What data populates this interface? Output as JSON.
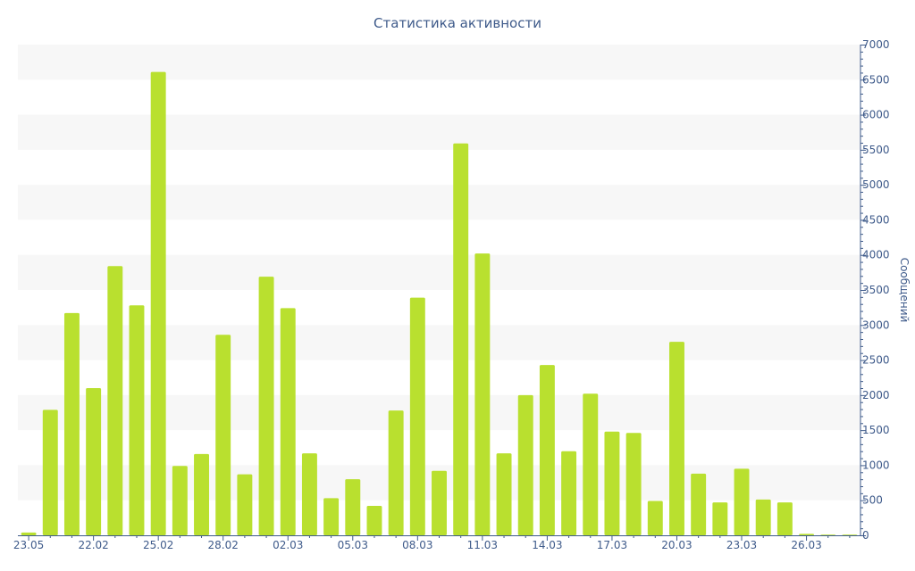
{
  "chart_data": {
    "type": "bar",
    "title": "Статистика активности",
    "xlabel": "",
    "ylabel": "Сообщений",
    "ylim": [
      0,
      7000
    ],
    "y_axis_side": "right",
    "yticks": [
      0,
      500,
      1000,
      1500,
      2000,
      2500,
      3000,
      3500,
      4000,
      4500,
      5000,
      5500,
      6000,
      6500,
      7000
    ],
    "x_tick_labels": [
      {
        "index": 0,
        "label": "23.05"
      },
      {
        "index": 3,
        "label": "22.02"
      },
      {
        "index": 6,
        "label": "25.02"
      },
      {
        "index": 9,
        "label": "28.02"
      },
      {
        "index": 12,
        "label": "02.03"
      },
      {
        "index": 15,
        "label": "05.03"
      },
      {
        "index": 18,
        "label": "08.03"
      },
      {
        "index": 21,
        "label": "11.03"
      },
      {
        "index": 24,
        "label": "14.03"
      },
      {
        "index": 27,
        "label": "17.03"
      },
      {
        "index": 30,
        "label": "20.03"
      },
      {
        "index": 33,
        "label": "23.03"
      },
      {
        "index": 36,
        "label": "26.03"
      }
    ],
    "values": [
      40,
      1790,
      3170,
      2100,
      3840,
      3280,
      6610,
      990,
      1160,
      2860,
      870,
      3690,
      3240,
      1170,
      530,
      800,
      420,
      1780,
      3390,
      920,
      5590,
      4020,
      1170,
      2000,
      2430,
      1200,
      2020,
      1480,
      1460,
      490,
      2760,
      880,
      470,
      950,
      510,
      470,
      20,
      10,
      10
    ],
    "grid": "horizontal-bands",
    "legend": "none",
    "bar_color": "#b9e02f",
    "text_color": "#3e5a8a"
  }
}
